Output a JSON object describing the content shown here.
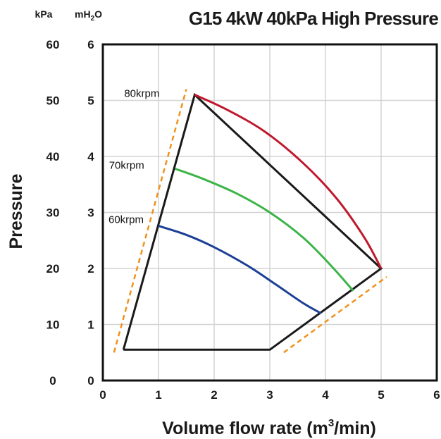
{
  "chart_data": {
    "type": "line",
    "title": "G15 4kW 40kPa High Pressure",
    "xlabel": "Volume flow rate (m",
    "xlabel_sup": "3",
    "xlabel_end": "/min)",
    "ylabel": "Pressure",
    "left_unit": "kPa",
    "right_unit_main": "mH",
    "right_unit_sub": "2",
    "right_unit_end": "O",
    "xlim": [
      0,
      6
    ],
    "ylim": [
      0,
      6
    ],
    "x_ticks": [
      "0",
      "1",
      "2",
      "3",
      "4",
      "5",
      "6"
    ],
    "y_ticks_mh2o": [
      "0",
      "1",
      "2",
      "3",
      "4",
      "5",
      "6"
    ],
    "y_ticks_kpa": [
      "0",
      "10",
      "20",
      "30",
      "40",
      "50",
      "60"
    ],
    "grid": true,
    "series": [
      {
        "name": "80krpm",
        "color": "#c0182c",
        "x": [
          1.65,
          2.2,
          2.9,
          3.6,
          4.2,
          4.7,
          5.0
        ],
        "y": [
          5.1,
          4.85,
          4.45,
          3.88,
          3.25,
          2.55,
          2.0
        ]
      },
      {
        "name": "70krpm",
        "color": "#3db449",
        "x": [
          1.3,
          1.8,
          2.4,
          3.0,
          3.6,
          4.1,
          4.5
        ],
        "y": [
          3.78,
          3.6,
          3.34,
          3.0,
          2.55,
          2.05,
          1.6
        ]
      },
      {
        "name": "60krpm",
        "color": "#1c3f96",
        "x": [
          1.0,
          1.5,
          2.0,
          2.6,
          3.1,
          3.6,
          3.92
        ],
        "y": [
          2.76,
          2.6,
          2.38,
          2.05,
          1.72,
          1.38,
          1.2
        ]
      }
    ],
    "envelope": {
      "color": "#1a1a1a",
      "x": [
        0.37,
        1.65,
        5.0,
        3.0,
        0.37
      ],
      "y": [
        0.55,
        5.1,
        2.0,
        0.55,
        0.55
      ]
    },
    "limit_lines": [
      {
        "color": "#f0921e",
        "x": [
          0.2,
          1.5
        ],
        "y": [
          0.5,
          5.2
        ]
      },
      {
        "color": "#f0921e",
        "x": [
          3.25,
          5.1
        ],
        "y": [
          0.5,
          1.85
        ]
      }
    ]
  }
}
